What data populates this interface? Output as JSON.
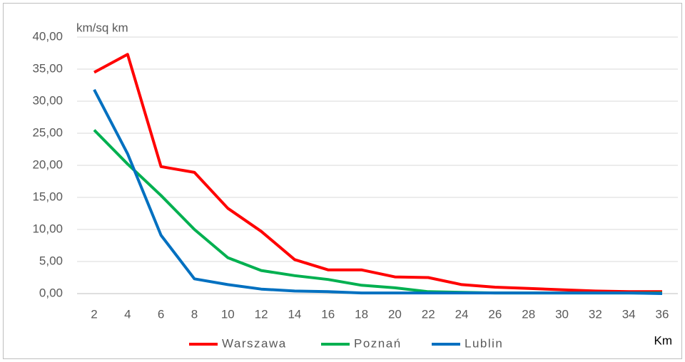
{
  "chart_data": {
    "type": "line",
    "y_label": "km/sq km",
    "x_label": "Km",
    "categories": [
      "2",
      "4",
      "6",
      "8",
      "10",
      "12",
      "14",
      "16",
      "18",
      "20",
      "22",
      "24",
      "26",
      "28",
      "30",
      "32",
      "34",
      "36"
    ],
    "series": [
      {
        "name": "Warszawa",
        "color": "#ff0000",
        "values": [
          34.5,
          37.3,
          19.8,
          18.9,
          13.3,
          9.7,
          5.3,
          3.7,
          3.7,
          2.6,
          2.5,
          1.4,
          1.0,
          0.8,
          0.6,
          0.4,
          0.3,
          0.3
        ]
      },
      {
        "name": "Poznań",
        "color": "#00b050",
        "values": [
          25.5,
          20.2,
          15.3,
          10.0,
          5.6,
          3.6,
          2.8,
          2.2,
          1.3,
          0.9,
          0.3,
          0.2,
          0.1,
          0.1,
          0.1,
          0.1,
          0.1,
          0.1
        ]
      },
      {
        "name": "Lublin",
        "color": "#0070c0",
        "values": [
          31.8,
          21.8,
          9.1,
          2.3,
          1.4,
          0.7,
          0.4,
          0.3,
          0.1,
          0.1,
          0.1,
          0.1,
          0.1,
          0.1,
          0.1,
          0.1,
          0.1,
          0.0
        ]
      }
    ],
    "ylim": [
      0,
      40
    ],
    "yticks": [
      {
        "value": 0,
        "label": "0,00"
      },
      {
        "value": 5,
        "label": "5,00"
      },
      {
        "value": 10,
        "label": "10,00"
      },
      {
        "value": 15,
        "label": "15,00"
      },
      {
        "value": 20,
        "label": "20,00"
      },
      {
        "value": 25,
        "label": "25,00"
      },
      {
        "value": 30,
        "label": "30,00"
      },
      {
        "value": 35,
        "label": "35,00"
      },
      {
        "value": 40,
        "label": "40,00"
      }
    ],
    "grid": true,
    "legend": "bottom"
  }
}
